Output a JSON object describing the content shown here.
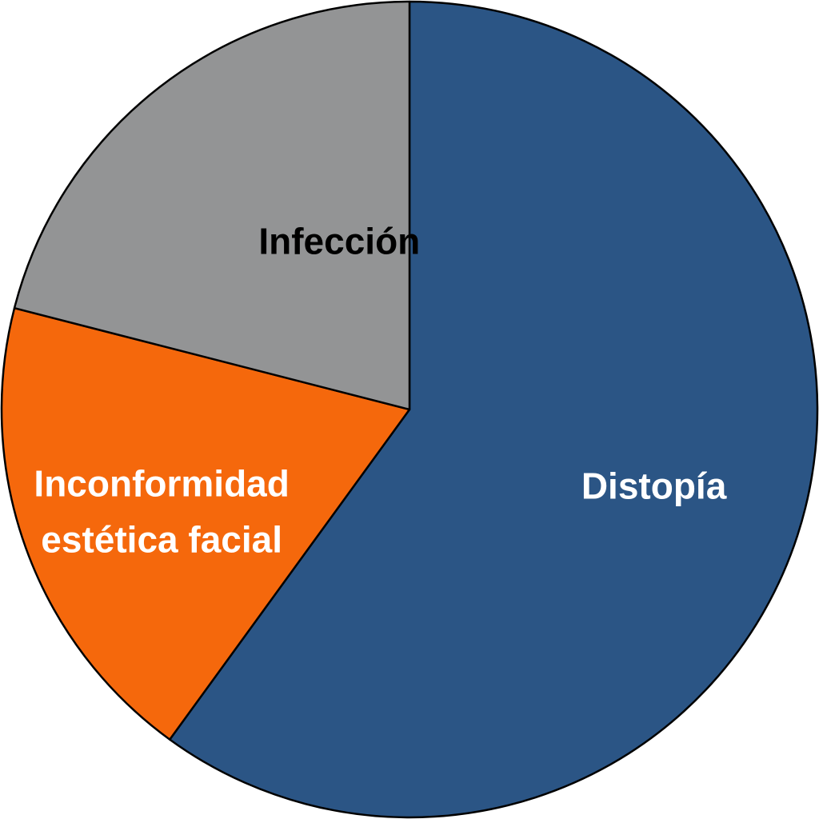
{
  "chart_data": {
    "type": "pie",
    "start_angle_deg": 0,
    "direction": "clockwise",
    "slices": [
      {
        "label": "Distopía",
        "value": 60,
        "color": "#2b5585",
        "label_color": "#ffffff"
      },
      {
        "label": "Inconformidad estética facial",
        "label_lines": [
          "Inconformidad",
          "estética facial"
        ],
        "value": 19,
        "color": "#f5680c",
        "label_color": "#ffffff"
      },
      {
        "label": "Infección",
        "value": 21,
        "color": "#939495",
        "label_color": "#000000"
      }
    ]
  }
}
